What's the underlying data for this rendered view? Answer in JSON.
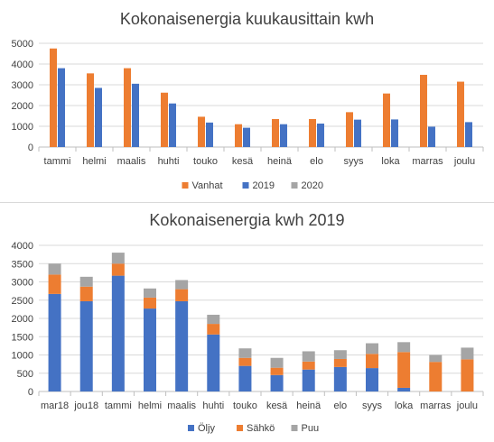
{
  "chart_data": [
    {
      "type": "bar",
      "title": "Kokonaisenergia kuukausittain kwh",
      "xlabel": "",
      "ylabel": "",
      "ylim": [
        0,
        5000
      ],
      "yticks": [
        0,
        1000,
        2000,
        3000,
        4000,
        5000
      ],
      "grid": "horizontal",
      "legend": "bottom",
      "categories": [
        "tammi",
        "helmi",
        "maalis",
        "huhti",
        "touko",
        "kesä",
        "heinä",
        "elo",
        "syys",
        "loka",
        "marras",
        "joulu"
      ],
      "series": [
        {
          "name": "Vanhat",
          "color": "#ed7d31",
          "values": [
            4750,
            3550,
            3800,
            2620,
            1460,
            1100,
            1350,
            1350,
            1680,
            2580,
            3480,
            3150
          ]
        },
        {
          "name": "2019",
          "color": "#4472c4",
          "values": [
            3800,
            2850,
            3050,
            2100,
            1180,
            930,
            1100,
            1130,
            1320,
            1330,
            980,
            1200
          ]
        },
        {
          "name": "2020",
          "color": "#a5a5a5",
          "values": [
            0,
            0,
            0,
            0,
            0,
            0,
            0,
            0,
            0,
            0,
            0,
            0
          ]
        }
      ]
    },
    {
      "type": "bar",
      "stacked": true,
      "title": "Kokonaisenergia kwh 2019",
      "xlabel": "",
      "ylabel": "",
      "ylim": [
        0,
        4000
      ],
      "yticks": [
        0,
        500,
        1000,
        1500,
        2000,
        2500,
        3000,
        3500,
        4000
      ],
      "grid": "horizontal",
      "legend": "bottom",
      "categories": [
        "mar18",
        "jou18",
        "tammi",
        "helmi",
        "maalis",
        "huhti",
        "touko",
        "kesä",
        "heinä",
        "elo",
        "syys",
        "loka",
        "marras",
        "joulu"
      ],
      "series": [
        {
          "name": "Öljy",
          "color": "#4472c4",
          "values": [
            2670,
            2470,
            3170,
            2270,
            2470,
            1560,
            700,
            450,
            600,
            670,
            640,
            100,
            0,
            0
          ]
        },
        {
          "name": "Sähkö",
          "color": "#ed7d31",
          "values": [
            530,
            400,
            330,
            300,
            330,
            290,
            220,
            200,
            220,
            220,
            390,
            980,
            810,
            880
          ]
        },
        {
          "name": "Puu",
          "color": "#a5a5a5",
          "values": [
            300,
            270,
            300,
            250,
            250,
            250,
            260,
            270,
            280,
            240,
            290,
            270,
            190,
            320
          ]
        }
      ]
    }
  ]
}
